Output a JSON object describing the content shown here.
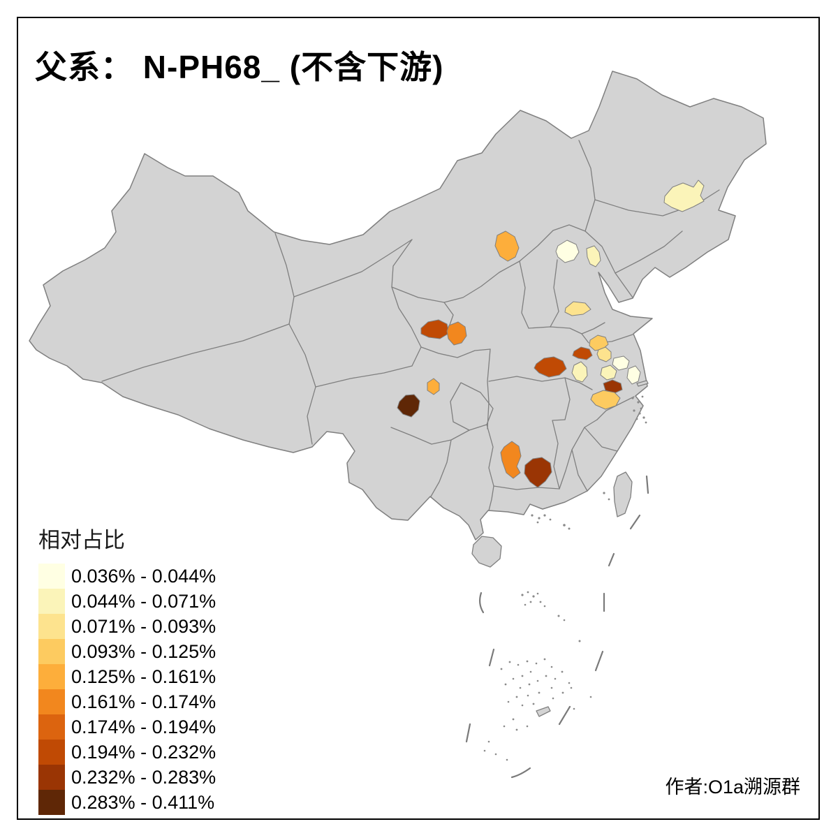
{
  "title": "父系： N-PH68_ (不含下游)",
  "credit": "作者:O1a溯源群",
  "legend": {
    "title": "相对占比",
    "bins": [
      {
        "label": "0.036% - 0.044%",
        "color": "#FFFFE3"
      },
      {
        "label": "0.044% - 0.071%",
        "color": "#FBF4B9"
      },
      {
        "label": "0.071% - 0.093%",
        "color": "#FDE38E"
      },
      {
        "label": "0.093% - 0.125%",
        "color": "#FDCB60"
      },
      {
        "label": "0.125% - 0.161%",
        "color": "#FDAE3B"
      },
      {
        "label": "0.161% - 0.174%",
        "color": "#F2871E"
      },
      {
        "label": "0.174% - 0.194%",
        "color": "#DC640F"
      },
      {
        "label": "0.194% - 0.232%",
        "color": "#C04A04"
      },
      {
        "label": "0.232% - 0.283%",
        "color": "#9A3504"
      },
      {
        "label": "0.283% - 0.411%",
        "color": "#5F2706"
      }
    ]
  },
  "map": {
    "land_color": "#D3D3D3",
    "border_color": "#7F7F7F",
    "background": "#FFFFFF",
    "frame_color": "#000000",
    "regions": [
      {
        "name": "harbin-heilongjiang",
        "bin": 2
      },
      {
        "name": "ulanqab-inner-mongolia",
        "bin": 5
      },
      {
        "name": "beijing",
        "bin": 1
      },
      {
        "name": "tianjin",
        "bin": 2
      },
      {
        "name": "west-shandong",
        "bin": 3
      },
      {
        "name": "east-gansu",
        "bin": 8
      },
      {
        "name": "central-shaanxi",
        "bin": 6
      },
      {
        "name": "central-henan",
        "bin": 8
      },
      {
        "name": "east-henan",
        "bin": 8
      },
      {
        "name": "xuzhou-jiangsu",
        "bin": 4
      },
      {
        "name": "suqian-jiangsu",
        "bin": 3
      },
      {
        "name": "northwest-anhui",
        "bin": 2
      },
      {
        "name": "central-jiangsu",
        "bin": 1
      },
      {
        "name": "mid-jiangsu",
        "bin": 2
      },
      {
        "name": "coastal-jiangsu-shanghai",
        "bin": 1
      },
      {
        "name": "nanjing-area",
        "bin": 9
      },
      {
        "name": "southeast-anhui",
        "bin": 4
      },
      {
        "name": "northeast-sichuan",
        "bin": 5
      },
      {
        "name": "west-sichuan",
        "bin": 10
      },
      {
        "name": "southwest-hunan",
        "bin": 6
      },
      {
        "name": "south-hunan",
        "bin": 9
      }
    ]
  }
}
